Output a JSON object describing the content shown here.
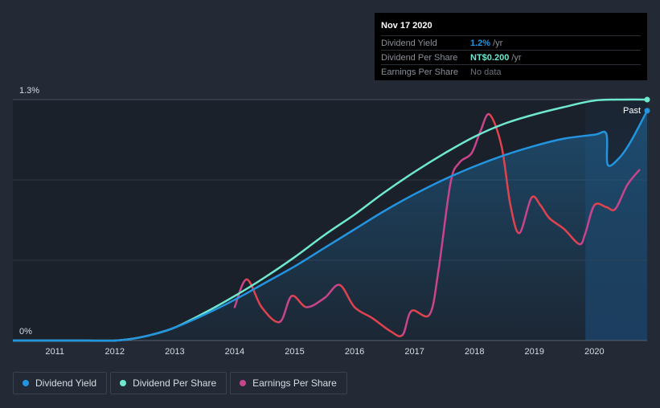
{
  "colors": {
    "background": "#232a36",
    "plot_background": "#1b212b",
    "dividend_yield": "#2394df",
    "dividend_per_share": "#6fe8d0",
    "earnings_up": "#c8448c",
    "earnings_down": "#e0424e",
    "forecast_band": "#1c3a5a"
  },
  "tooltip": {
    "date": "Nov 17 2020",
    "rows": [
      {
        "label": "Dividend Yield",
        "value": "1.2%",
        "unit": "/yr",
        "color": "#2394df"
      },
      {
        "label": "Dividend Per Share",
        "value": "NT$0.200",
        "unit": "/yr",
        "color": "#6fe8d0"
      },
      {
        "label": "Earnings Per Share",
        "value": "No data",
        "unit": "",
        "color": ""
      }
    ]
  },
  "past_label": "Past",
  "legend": [
    {
      "label": "Dividend Yield",
      "color": "#2394df"
    },
    {
      "label": "Dividend Per Share",
      "color": "#6fe8d0"
    },
    {
      "label": "Earnings Per Share",
      "color": "#c8448c"
    }
  ],
  "chart_data": {
    "type": "line",
    "x_ticks": [
      "2011",
      "2012",
      "2013",
      "2014",
      "2015",
      "2016",
      "2017",
      "2018",
      "2019",
      "2020"
    ],
    "xlim": [
      2010.3,
      2020.88
    ],
    "y_ticks": [
      "0%",
      "1.3%"
    ],
    "ylim": [
      0,
      1.3
    ],
    "grid": true,
    "legend_position": "bottom-left",
    "series": [
      {
        "name": "Dividend Yield",
        "color": "#2394df",
        "fill": true,
        "points": [
          [
            2010.3,
            0
          ],
          [
            2011.0,
            0
          ],
          [
            2011.5,
            0
          ],
          [
            2012.0,
            0
          ],
          [
            2012.3,
            0.01
          ],
          [
            2012.6,
            0.03
          ],
          [
            2013.0,
            0.07
          ],
          [
            2013.5,
            0.14
          ],
          [
            2014.0,
            0.22
          ],
          [
            2014.5,
            0.31
          ],
          [
            2015.0,
            0.4
          ],
          [
            2015.5,
            0.5
          ],
          [
            2016.0,
            0.6
          ],
          [
            2016.5,
            0.7
          ],
          [
            2017.0,
            0.79
          ],
          [
            2017.5,
            0.87
          ],
          [
            2018.0,
            0.94
          ],
          [
            2018.5,
            1.0
          ],
          [
            2019.0,
            1.05
          ],
          [
            2019.5,
            1.09
          ],
          [
            2020.0,
            1.11
          ],
          [
            2020.2,
            1.115
          ],
          [
            2020.22,
            0.95
          ],
          [
            2020.4,
            0.98
          ],
          [
            2020.6,
            1.07
          ],
          [
            2020.88,
            1.24
          ]
        ]
      },
      {
        "name": "Dividend Per Share",
        "color": "#6fe8d0",
        "fill": false,
        "points": [
          [
            2010.3,
            0
          ],
          [
            2011.0,
            0
          ],
          [
            2011.5,
            0
          ],
          [
            2012.0,
            0
          ],
          [
            2012.3,
            0.01
          ],
          [
            2012.6,
            0.03
          ],
          [
            2013.0,
            0.07
          ],
          [
            2013.5,
            0.15
          ],
          [
            2014.0,
            0.24
          ],
          [
            2014.5,
            0.34
          ],
          [
            2015.0,
            0.45
          ],
          [
            2015.5,
            0.57
          ],
          [
            2016.0,
            0.68
          ],
          [
            2016.5,
            0.8
          ],
          [
            2017.0,
            0.91
          ],
          [
            2017.5,
            1.01
          ],
          [
            2018.0,
            1.1
          ],
          [
            2018.5,
            1.17
          ],
          [
            2019.0,
            1.22
          ],
          [
            2019.5,
            1.26
          ],
          [
            2020.0,
            1.295
          ],
          [
            2020.5,
            1.3
          ],
          [
            2020.88,
            1.3
          ]
        ]
      },
      {
        "name": "Earnings Per Share",
        "color": "#c8448c",
        "fill": false,
        "points": [
          [
            2014.0,
            0.18
          ],
          [
            2014.2,
            0.33
          ],
          [
            2014.45,
            0.18
          ],
          [
            2014.75,
            0.1
          ],
          [
            2014.95,
            0.24
          ],
          [
            2015.2,
            0.18
          ],
          [
            2015.5,
            0.23
          ],
          [
            2015.75,
            0.3
          ],
          [
            2016.0,
            0.18
          ],
          [
            2016.3,
            0.12
          ],
          [
            2016.6,
            0.05
          ],
          [
            2016.8,
            0.03
          ],
          [
            2016.95,
            0.16
          ],
          [
            2017.25,
            0.14
          ],
          [
            2017.4,
            0.38
          ],
          [
            2017.6,
            0.85
          ],
          [
            2017.75,
            0.96
          ],
          [
            2017.95,
            1.01
          ],
          [
            2018.1,
            1.13
          ],
          [
            2018.25,
            1.22
          ],
          [
            2018.45,
            1.05
          ],
          [
            2018.6,
            0.73
          ],
          [
            2018.75,
            0.58
          ],
          [
            2018.95,
            0.77
          ],
          [
            2019.1,
            0.73
          ],
          [
            2019.25,
            0.66
          ],
          [
            2019.5,
            0.6
          ],
          [
            2019.75,
            0.52
          ],
          [
            2019.85,
            0.58
          ],
          [
            2020.0,
            0.73
          ],
          [
            2020.2,
            0.72
          ],
          [
            2020.35,
            0.71
          ],
          [
            2020.55,
            0.84
          ],
          [
            2020.75,
            0.92
          ]
        ]
      }
    ]
  }
}
